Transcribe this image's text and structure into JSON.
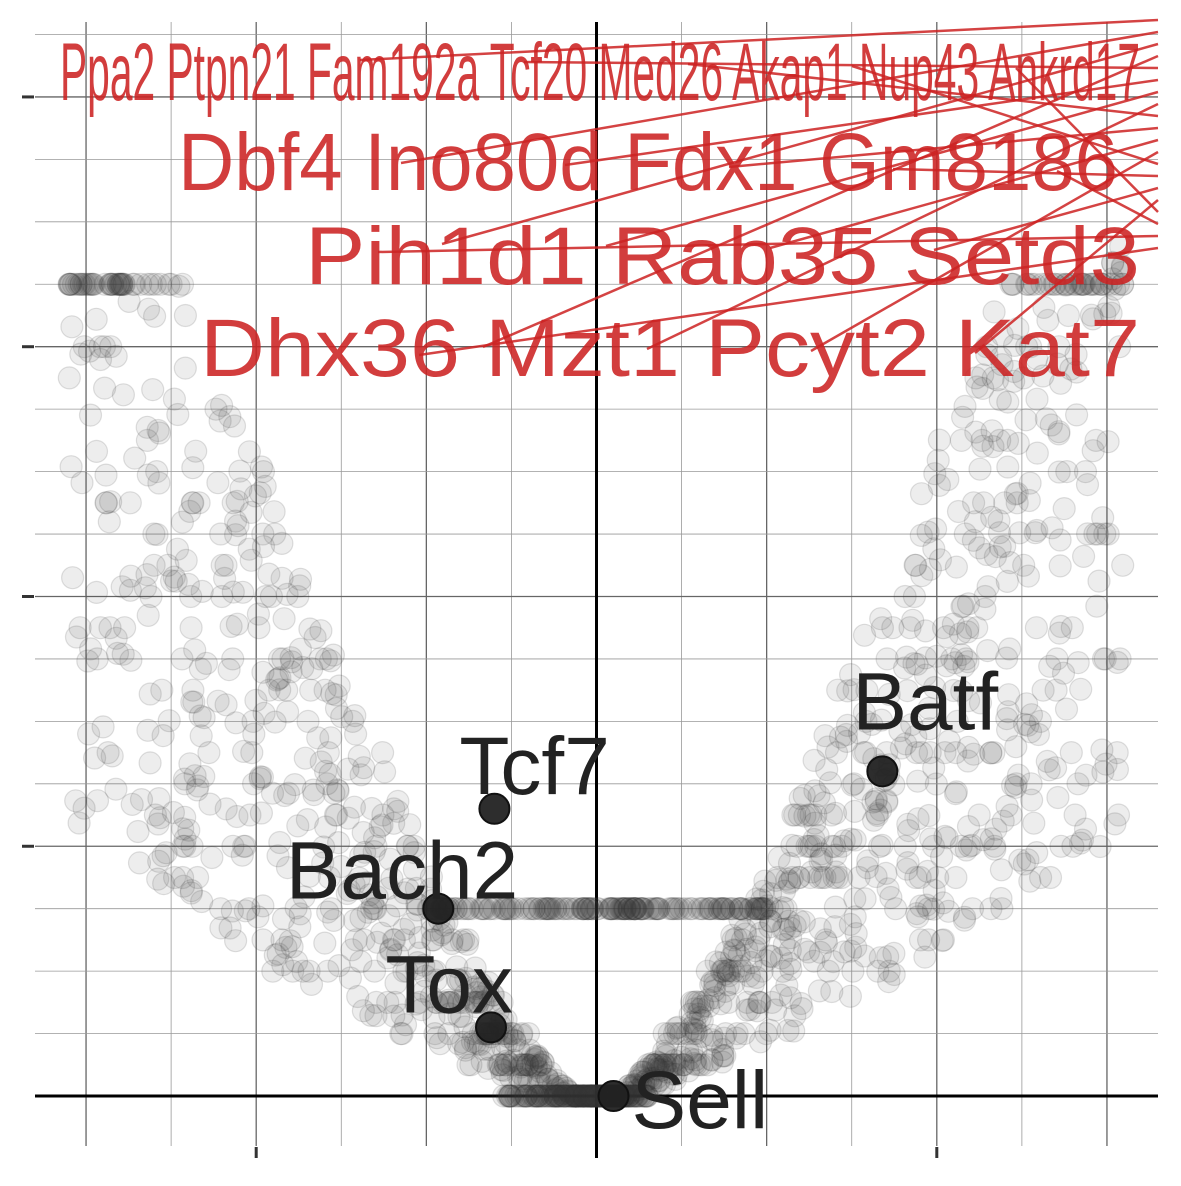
{
  "colors": {
    "background": "#ffffff",
    "grid_major": "#666666",
    "grid_minor": "#999999",
    "zero_axis": "#000000",
    "point": "#333333",
    "highlight": "#222222",
    "label_red": "#cc2222"
  },
  "chart_data": {
    "type": "scatter",
    "subtype": "volcano",
    "title": "",
    "xlabel": "",
    "ylabel": "",
    "xlim": [
      -3.3,
      3.3
    ],
    "ylim": [
      -0.4,
      8.6
    ],
    "grid": true,
    "legend": "none",
    "highlighted": [
      {
        "label": "Batf",
        "x": 1.68,
        "y": 2.6
      },
      {
        "label": "Tcf7",
        "x": -0.6,
        "y": 2.3
      },
      {
        "label": "Bach2",
        "x": -0.93,
        "y": 1.5
      },
      {
        "label": "Tox",
        "x": -0.62,
        "y": 0.55
      },
      {
        "label": "Sell",
        "x": 0.1,
        "y": 0.0
      }
    ],
    "top_labels": [
      {
        "label": "Ppa2",
        "x": 2.9,
        "y": 8.5
      },
      {
        "label": "Ptpn21",
        "x": 2.95,
        "y": 8.48
      },
      {
        "label": "Fam192a",
        "x": 3.0,
        "y": 8.46
      },
      {
        "label": "Tcf20",
        "x": 3.05,
        "y": 8.44
      },
      {
        "label": "Med26",
        "x": 2.85,
        "y": 8.4
      },
      {
        "label": "Akap1",
        "x": 3.1,
        "y": 8.42
      },
      {
        "label": "Nup43",
        "x": 2.92,
        "y": 8.38
      },
      {
        "label": "Ankrd17",
        "x": 3.02,
        "y": 8.36
      },
      {
        "label": "Dbf4",
        "x": 2.6,
        "y": 8.1
      },
      {
        "label": "Ino80d",
        "x": 2.75,
        "y": 8.05
      },
      {
        "label": "Fdx1",
        "x": 2.7,
        "y": 8.15
      },
      {
        "label": "Gm8186",
        "x": 2.5,
        "y": 7.9
      },
      {
        "label": "Pih1d1",
        "x": 2.55,
        "y": 7.3
      },
      {
        "label": "Rab35",
        "x": 2.8,
        "y": 7.4
      },
      {
        "label": "Setd3",
        "x": 2.65,
        "y": 7.25
      },
      {
        "label": "Dhx36",
        "x": 2.6,
        "y": 6.7
      },
      {
        "label": "Mzt1",
        "x": 2.5,
        "y": 6.6
      },
      {
        "label": "Pcyt2",
        "x": 2.7,
        "y": 6.75
      },
      {
        "label": "Kat7",
        "x": 2.55,
        "y": 6.5
      }
    ],
    "top_label_rows": [
      {
        "text": "Ppa2 Ptpn21 Fam192a Tcf20 Med26 Akap1 Nup43 Ankrd17"
      },
      {
        "text": "Dbf4 Ino80d Fdx1 Gm8186"
      },
      {
        "text": "Pih1d1 Rab35 Setd3"
      },
      {
        "text": "Dhx36 Mzt1 Pcyt2 Kat7"
      }
    ]
  }
}
